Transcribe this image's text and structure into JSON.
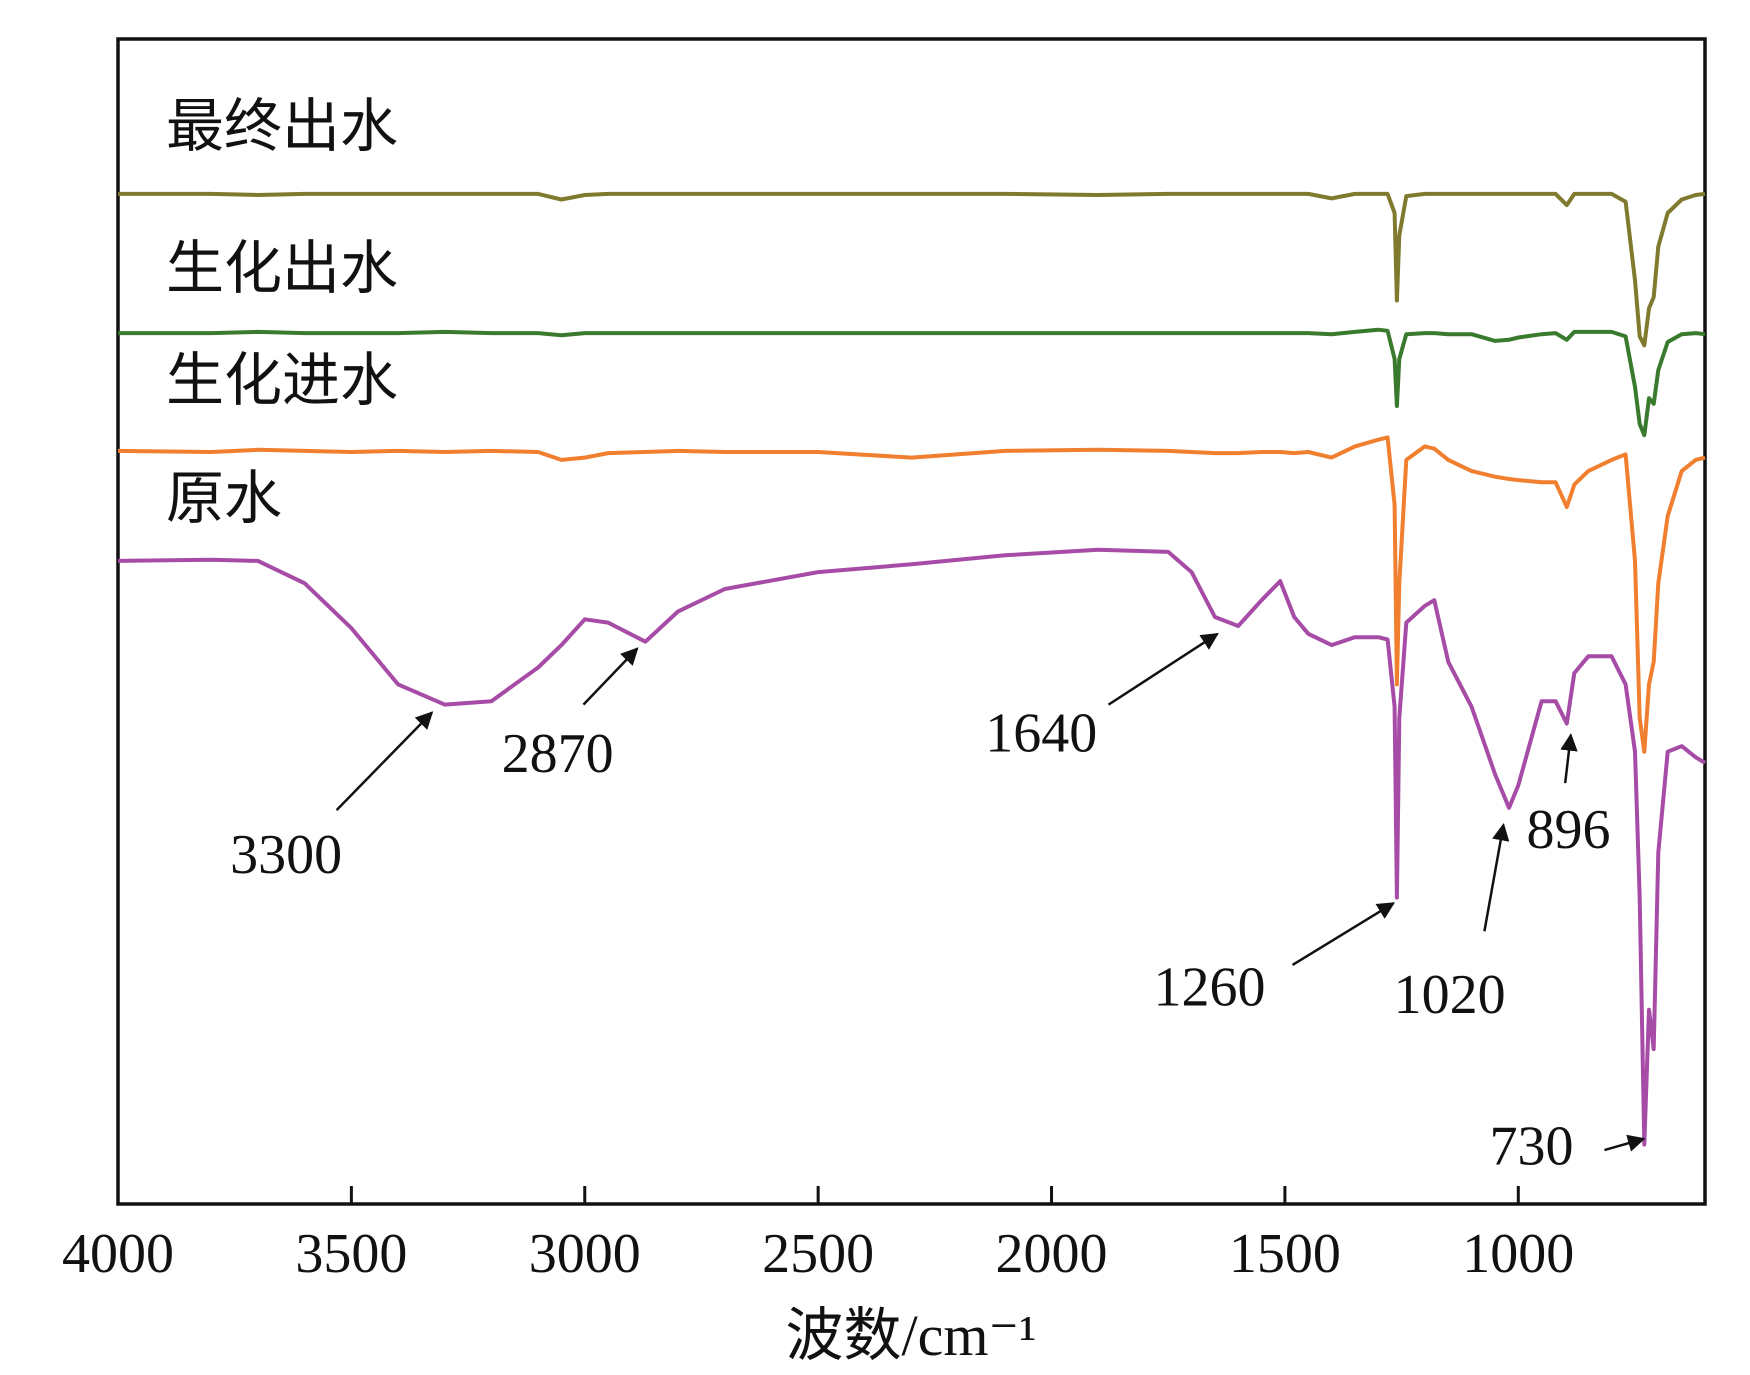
{
  "chart_data": {
    "type": "line",
    "x_label": "波数/cm⁻¹",
    "x": [
      4000,
      3800,
      3700,
      3600,
      3500,
      3400,
      3300,
      3200,
      3100,
      3050,
      3000,
      2950,
      2870,
      2800,
      2700,
      2500,
      2300,
      2100,
      1900,
      1750,
      1700,
      1650,
      1600,
      1550,
      1510,
      1480,
      1450,
      1400,
      1350,
      1300,
      1280,
      1265,
      1260,
      1255,
      1240,
      1200,
      1180,
      1150,
      1100,
      1050,
      1020,
      1000,
      950,
      920,
      896,
      880,
      850,
      800,
      770,
      750,
      740,
      730,
      720,
      710,
      700,
      680,
      650,
      620,
      600
    ],
    "xlim": [
      4000,
      600
    ],
    "xticks": [
      4000,
      3500,
      3000,
      2500,
      2000,
      1500,
      1000
    ],
    "ylim": [
      0,
      1038
    ],
    "series": [
      {
        "name": "最终出水",
        "color": "#7f7a2e",
        "values": [
          900,
          900,
          899,
          900,
          900,
          900,
          900,
          900,
          900,
          895,
          899,
          900,
          900,
          900,
          900,
          900,
          900,
          900,
          899,
          900,
          900,
          900,
          900,
          900,
          900,
          900,
          900,
          896,
          900,
          900,
          900,
          883,
          805,
          863,
          898,
          900,
          900,
          900,
          900,
          900,
          900,
          900,
          900,
          900,
          890,
          900,
          900,
          900,
          893,
          823,
          773,
          765,
          798,
          808,
          853,
          883,
          895,
          899,
          900
        ]
      },
      {
        "name": "生化出水",
        "color": "#3a7a2e",
        "values": [
          776,
          776,
          777,
          776,
          776,
          776,
          777,
          776,
          776,
          774,
          776,
          776,
          776,
          776,
          776,
          776,
          776,
          776,
          776,
          776,
          776,
          776,
          776,
          776,
          776,
          776,
          776,
          775,
          777,
          779,
          778,
          753,
          711,
          753,
          775,
          776,
          776,
          775,
          775,
          769,
          770,
          772,
          775,
          776,
          770,
          777,
          777,
          777,
          773,
          728,
          695,
          685,
          718,
          713,
          743,
          768,
          775,
          776,
          775
        ]
      },
      {
        "name": "生化进水",
        "color": "#f07f2f",
        "values": [
          671,
          670,
          672,
          671,
          670,
          671,
          670,
          671,
          670,
          663,
          665,
          669,
          670,
          671,
          670,
          670,
          665,
          671,
          672,
          671,
          670,
          669,
          669,
          670,
          670,
          669,
          670,
          665,
          675,
          681,
          683,
          623,
          463,
          553,
          663,
          675,
          673,
          663,
          653,
          648,
          646,
          645,
          643,
          643,
          621,
          641,
          653,
          663,
          668,
          573,
          433,
          403,
          463,
          483,
          553,
          613,
          653,
          663,
          665
        ]
      },
      {
        "name": "原水",
        "color": "#a64ca6",
        "values": [
          573,
          574,
          573,
          553,
          513,
          463,
          445,
          448,
          478,
          498,
          521,
          518,
          501,
          528,
          548,
          563,
          570,
          578,
          583,
          581,
          563,
          523,
          515,
          538,
          555,
          523,
          508,
          498,
          505,
          505,
          503,
          443,
          273,
          433,
          518,
          533,
          538,
          483,
          443,
          383,
          353,
          373,
          448,
          448,
          428,
          473,
          488,
          488,
          463,
          403,
          273,
          53,
          173,
          138,
          313,
          403,
          408,
          398,
          393
        ]
      }
    ],
    "annotations": [
      3300,
      2870,
      1640,
      1260,
      1020,
      896,
      730
    ]
  }
}
